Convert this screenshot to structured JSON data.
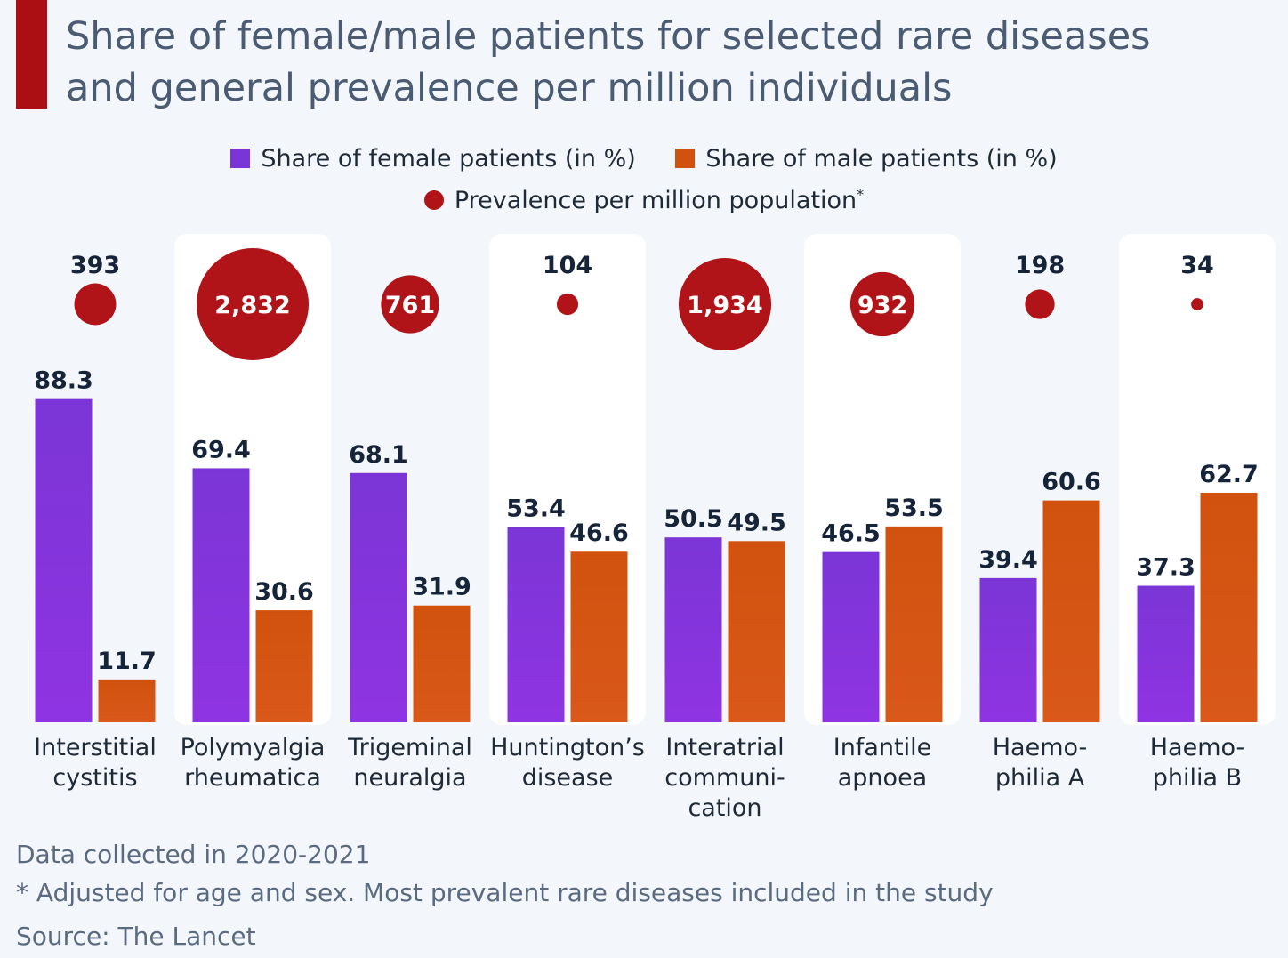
{
  "title_lines": [
    "Share of female/male patients for selected rare diseases",
    "and general prevalence per million individuals"
  ],
  "legend": {
    "female": "Share of female patients (in %)",
    "male": "Share of male patients (in %)",
    "prevalence": "Prevalence per million population",
    "prevalence_mark": "*"
  },
  "colors": {
    "accent": "#ab0f14",
    "female": "#7b35d6",
    "male": "#d1520e",
    "bubble": "#b01418",
    "label_dark": "#16243a",
    "category_text": "#1e2a38"
  },
  "chart_data": {
    "type": "bar",
    "categories": [
      [
        "Interstitial",
        "cystitis"
      ],
      [
        "Polymyalgia",
        "rheumatica"
      ],
      [
        "Trigeminal",
        "neuralgia"
      ],
      [
        "Huntington’s",
        "disease"
      ],
      [
        "Interatrial",
        "communi-",
        "cation"
      ],
      [
        "Infantile",
        "apnoea"
      ],
      [
        "Haemo-",
        "philia A"
      ],
      [
        "Haemo-",
        "philia B"
      ]
    ],
    "series": [
      {
        "name": "Share of female patients (in %)",
        "values": [
          88.3,
          69.4,
          68.1,
          53.4,
          50.5,
          46.5,
          39.4,
          37.3
        ]
      },
      {
        "name": "Share of male patients (in %)",
        "values": [
          11.7,
          30.6,
          31.9,
          46.6,
          49.5,
          53.5,
          60.6,
          62.7
        ]
      }
    ],
    "prevalence": {
      "name": "Prevalence per million population",
      "values": [
        393,
        2832,
        761,
        104,
        1934,
        932,
        198,
        34
      ],
      "labels": [
        "393",
        "2,832",
        "761",
        "104",
        "1,934",
        "932",
        "198",
        "34"
      ]
    },
    "ylim": [
      0,
      100
    ],
    "bar_labels": {
      "female": [
        "88.3",
        "69.4",
        "68.1",
        "53.4",
        "50.5",
        "46.5",
        "39.4",
        "37.3"
      ],
      "male": [
        "11.7",
        "30.6",
        "31.9",
        "46.6",
        "49.5",
        "53.5",
        "60.6",
        "62.7"
      ]
    }
  },
  "footnotes": {
    "collected": "Data collected in 2020-2021",
    "adjusted": "* Adjusted for age and sex. Most prevalent rare diseases included in the study",
    "source": "Source: The Lancet"
  }
}
